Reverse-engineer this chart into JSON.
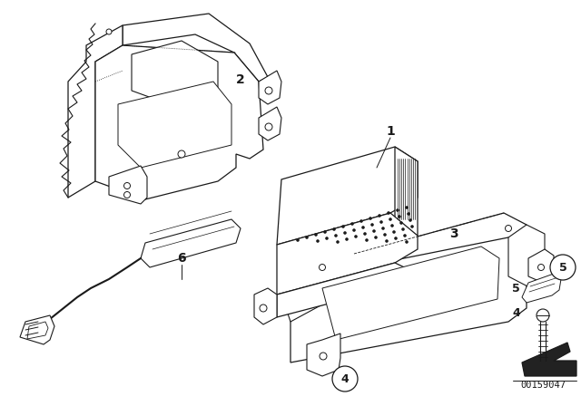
{
  "bg_color": "#ffffff",
  "line_color": "#1a1a1a",
  "fig_width": 6.4,
  "fig_height": 4.48,
  "dpi": 100,
  "catalog_number": "00159047"
}
